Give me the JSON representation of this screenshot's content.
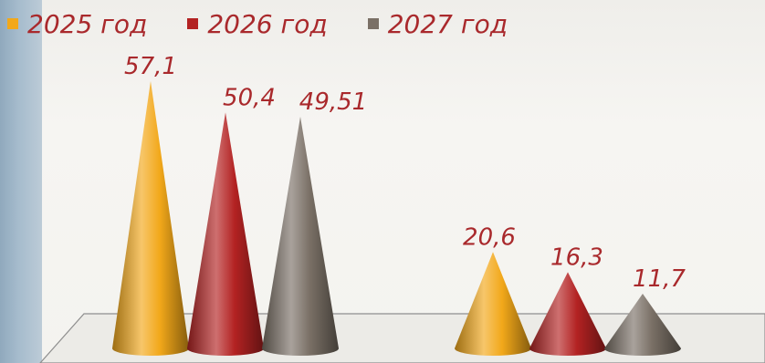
{
  "chart_data": {
    "type": "bar",
    "shape": "cone",
    "categories": [
      "",
      ""
    ],
    "series": [
      {
        "name": "2025 год",
        "color": "#f2a81a",
        "values": [
          57.1,
          20.6
        ],
        "labels": [
          "57,1",
          "20,6"
        ]
      },
      {
        "name": "2026 год",
        "color": "#b32222",
        "values": [
          50.4,
          16.3
        ],
        "labels": [
          "50,4",
          "16,3"
        ]
      },
      {
        "name": "2027 год",
        "color": "#7a7066",
        "values": [
          49.51,
          11.7
        ],
        "labels": [
          "49,51",
          "11,7"
        ]
      }
    ],
    "legend_position": "top-left",
    "label_color": "#a9292c",
    "grid": false,
    "ylim": [
      0,
      60
    ]
  }
}
